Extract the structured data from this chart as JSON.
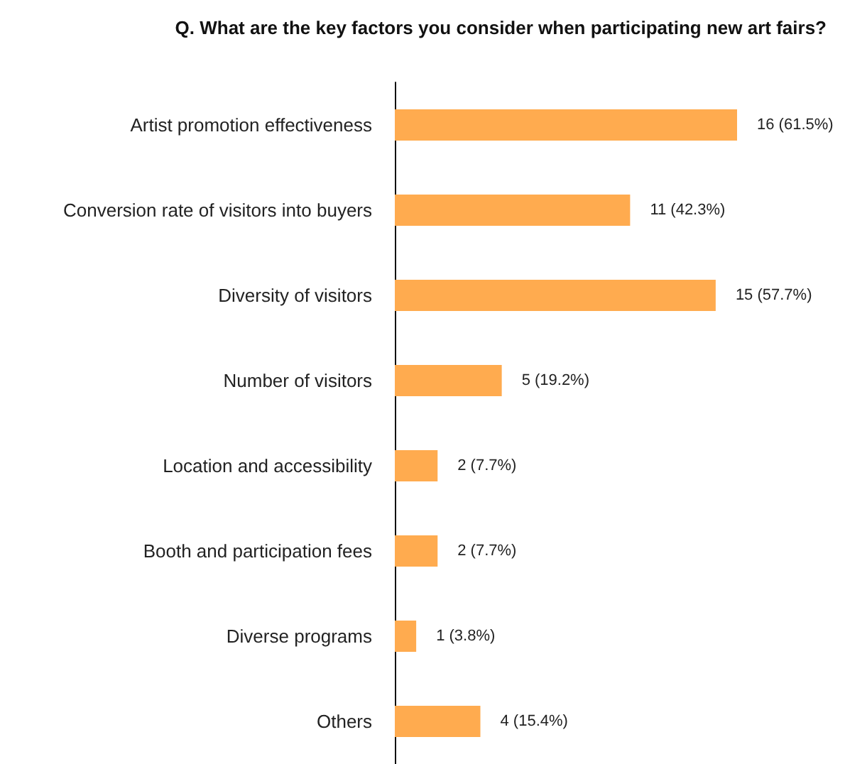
{
  "chart_data": {
    "type": "bar",
    "orientation": "horizontal",
    "title": "Q. What are the key factors you consider when participating new art fairs?",
    "categories": [
      "Artist promotion effectiveness",
      "Conversion rate of visitors into buyers",
      "Diversity of visitors",
      "Number of visitors",
      "Location and accessibility",
      "Booth and participation fees",
      "Diverse programs",
      "Others"
    ],
    "values": [
      16,
      11,
      15,
      5,
      2,
      2,
      1,
      4
    ],
    "color": "#ffab4f",
    "value_labels": [
      "16 (61.5%)",
      "11 (42.3%)",
      "15 (57.7%)",
      "5 (19.2%)",
      "2 (7.7%)",
      "2 (7.7%)",
      "1 (3.8%)",
      "4 (15.4%)"
    ]
  }
}
